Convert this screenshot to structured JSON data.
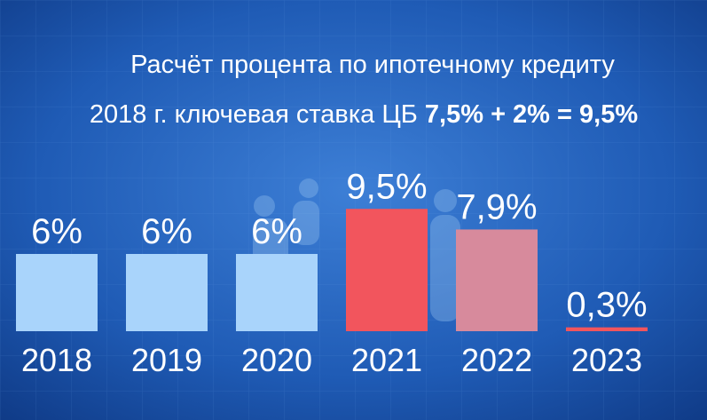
{
  "chart_data": {
    "type": "bar",
    "title": "Расчёт процента по ипотечному кредиту",
    "subtitle": [
      "2018 г. ключевая ставка ЦБ",
      "7,5% + 2% = 9,5%"
    ],
    "categories": [
      "2018",
      "2019",
      "2020",
      "2021",
      "2022",
      "2023"
    ],
    "values": [
      6,
      6,
      6,
      9.5,
      7.9,
      0.3
    ],
    "value_labels": [
      "6%",
      "6%",
      "6%",
      "9,5%",
      "7,9%",
      "0,3%"
    ],
    "colors": [
      "#a9d4fb",
      "#a9d4fb",
      "#a9d4fb",
      "#f2555d",
      "#d78a9c",
      "#f2555d"
    ]
  }
}
